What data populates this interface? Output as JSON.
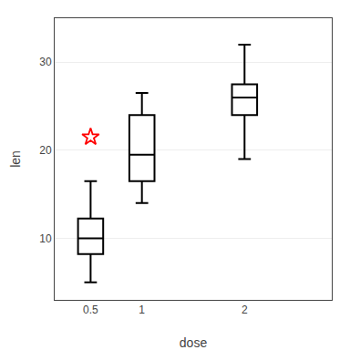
{
  "chart_data": {
    "type": "box",
    "xlabel": "dose",
    "ylabel": "len",
    "x": [
      0.5,
      1.0,
      2.0
    ],
    "q1": [
      8.2,
      16.5,
      24.0
    ],
    "median": [
      10.0,
      19.5,
      26.0
    ],
    "q3": [
      12.25,
      24.0,
      27.5
    ],
    "whisker_low": [
      5.0,
      14.0,
      19.0
    ],
    "whisker_high": [
      16.5,
      26.5,
      32.0
    ],
    "color": "#000000",
    "outliers": {
      "values": [
        [
          21.5
        ],
        [],
        []
      ],
      "color": "#FF0000",
      "marker": "star"
    },
    "xlim": [
      0.15,
      2.85
    ],
    "xticks": [
      0.5,
      1.0,
      2.0
    ],
    "ylim": [
      3,
      35
    ],
    "yticks": [
      10,
      20,
      30
    ],
    "grid": "y"
  }
}
